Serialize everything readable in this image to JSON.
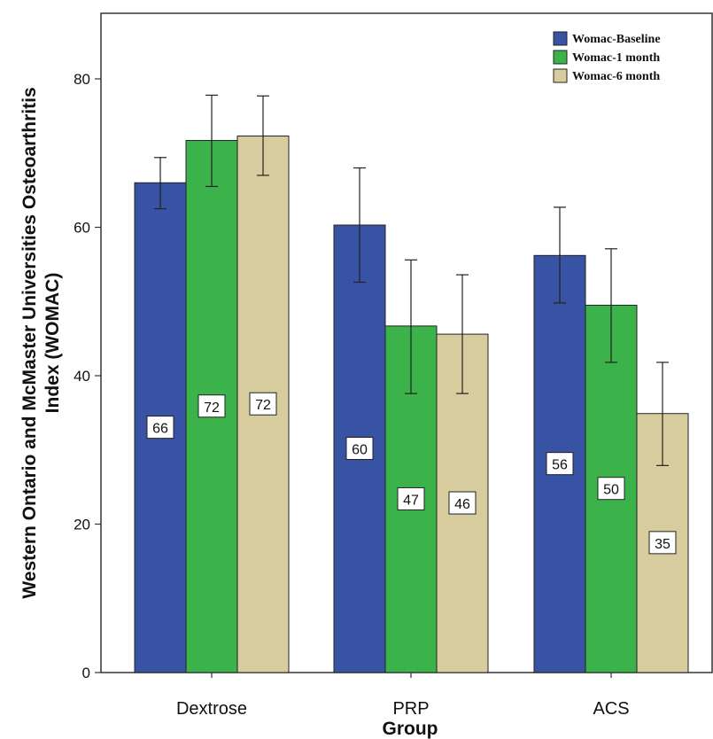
{
  "chart_data": {
    "type": "bar",
    "xlabel": "Group",
    "ylabel_lines": [
      "Western Ontario and McMaster Universities Osteoarthritis",
      "Index (WOMAC)"
    ],
    "categories": [
      "Dextrose",
      "PRP",
      "ACS"
    ],
    "ylim": [
      0,
      88
    ],
    "yticks": [
      0,
      20,
      40,
      60,
      80
    ],
    "legend_position": "top-right",
    "grid": false,
    "series": [
      {
        "name": "Womac-Baseline",
        "color": "#3953a4",
        "values": [
          66,
          60.3,
          56.2
        ],
        "error_low": [
          62.5,
          52.6,
          49.8
        ],
        "error_high": [
          69.4,
          68,
          62.7
        ],
        "labels": [
          "66",
          "60",
          "56"
        ]
      },
      {
        "name": "Womac-1 month",
        "color": "#3cb24a",
        "values": [
          71.7,
          46.7,
          49.5
        ],
        "error_low": [
          65.5,
          37.6,
          41.8
        ],
        "error_high": [
          77.8,
          55.6,
          57.1
        ],
        "labels": [
          "72",
          "47",
          "50"
        ]
      },
      {
        "name": "Womac-6 month",
        "color": "#d7cc9e",
        "values": [
          72.3,
          45.6,
          34.9
        ],
        "error_low": [
          67,
          37.6,
          27.9
        ],
        "error_high": [
          77.7,
          53.6,
          41.8
        ],
        "labels": [
          "72",
          "46",
          "35"
        ]
      }
    ]
  }
}
